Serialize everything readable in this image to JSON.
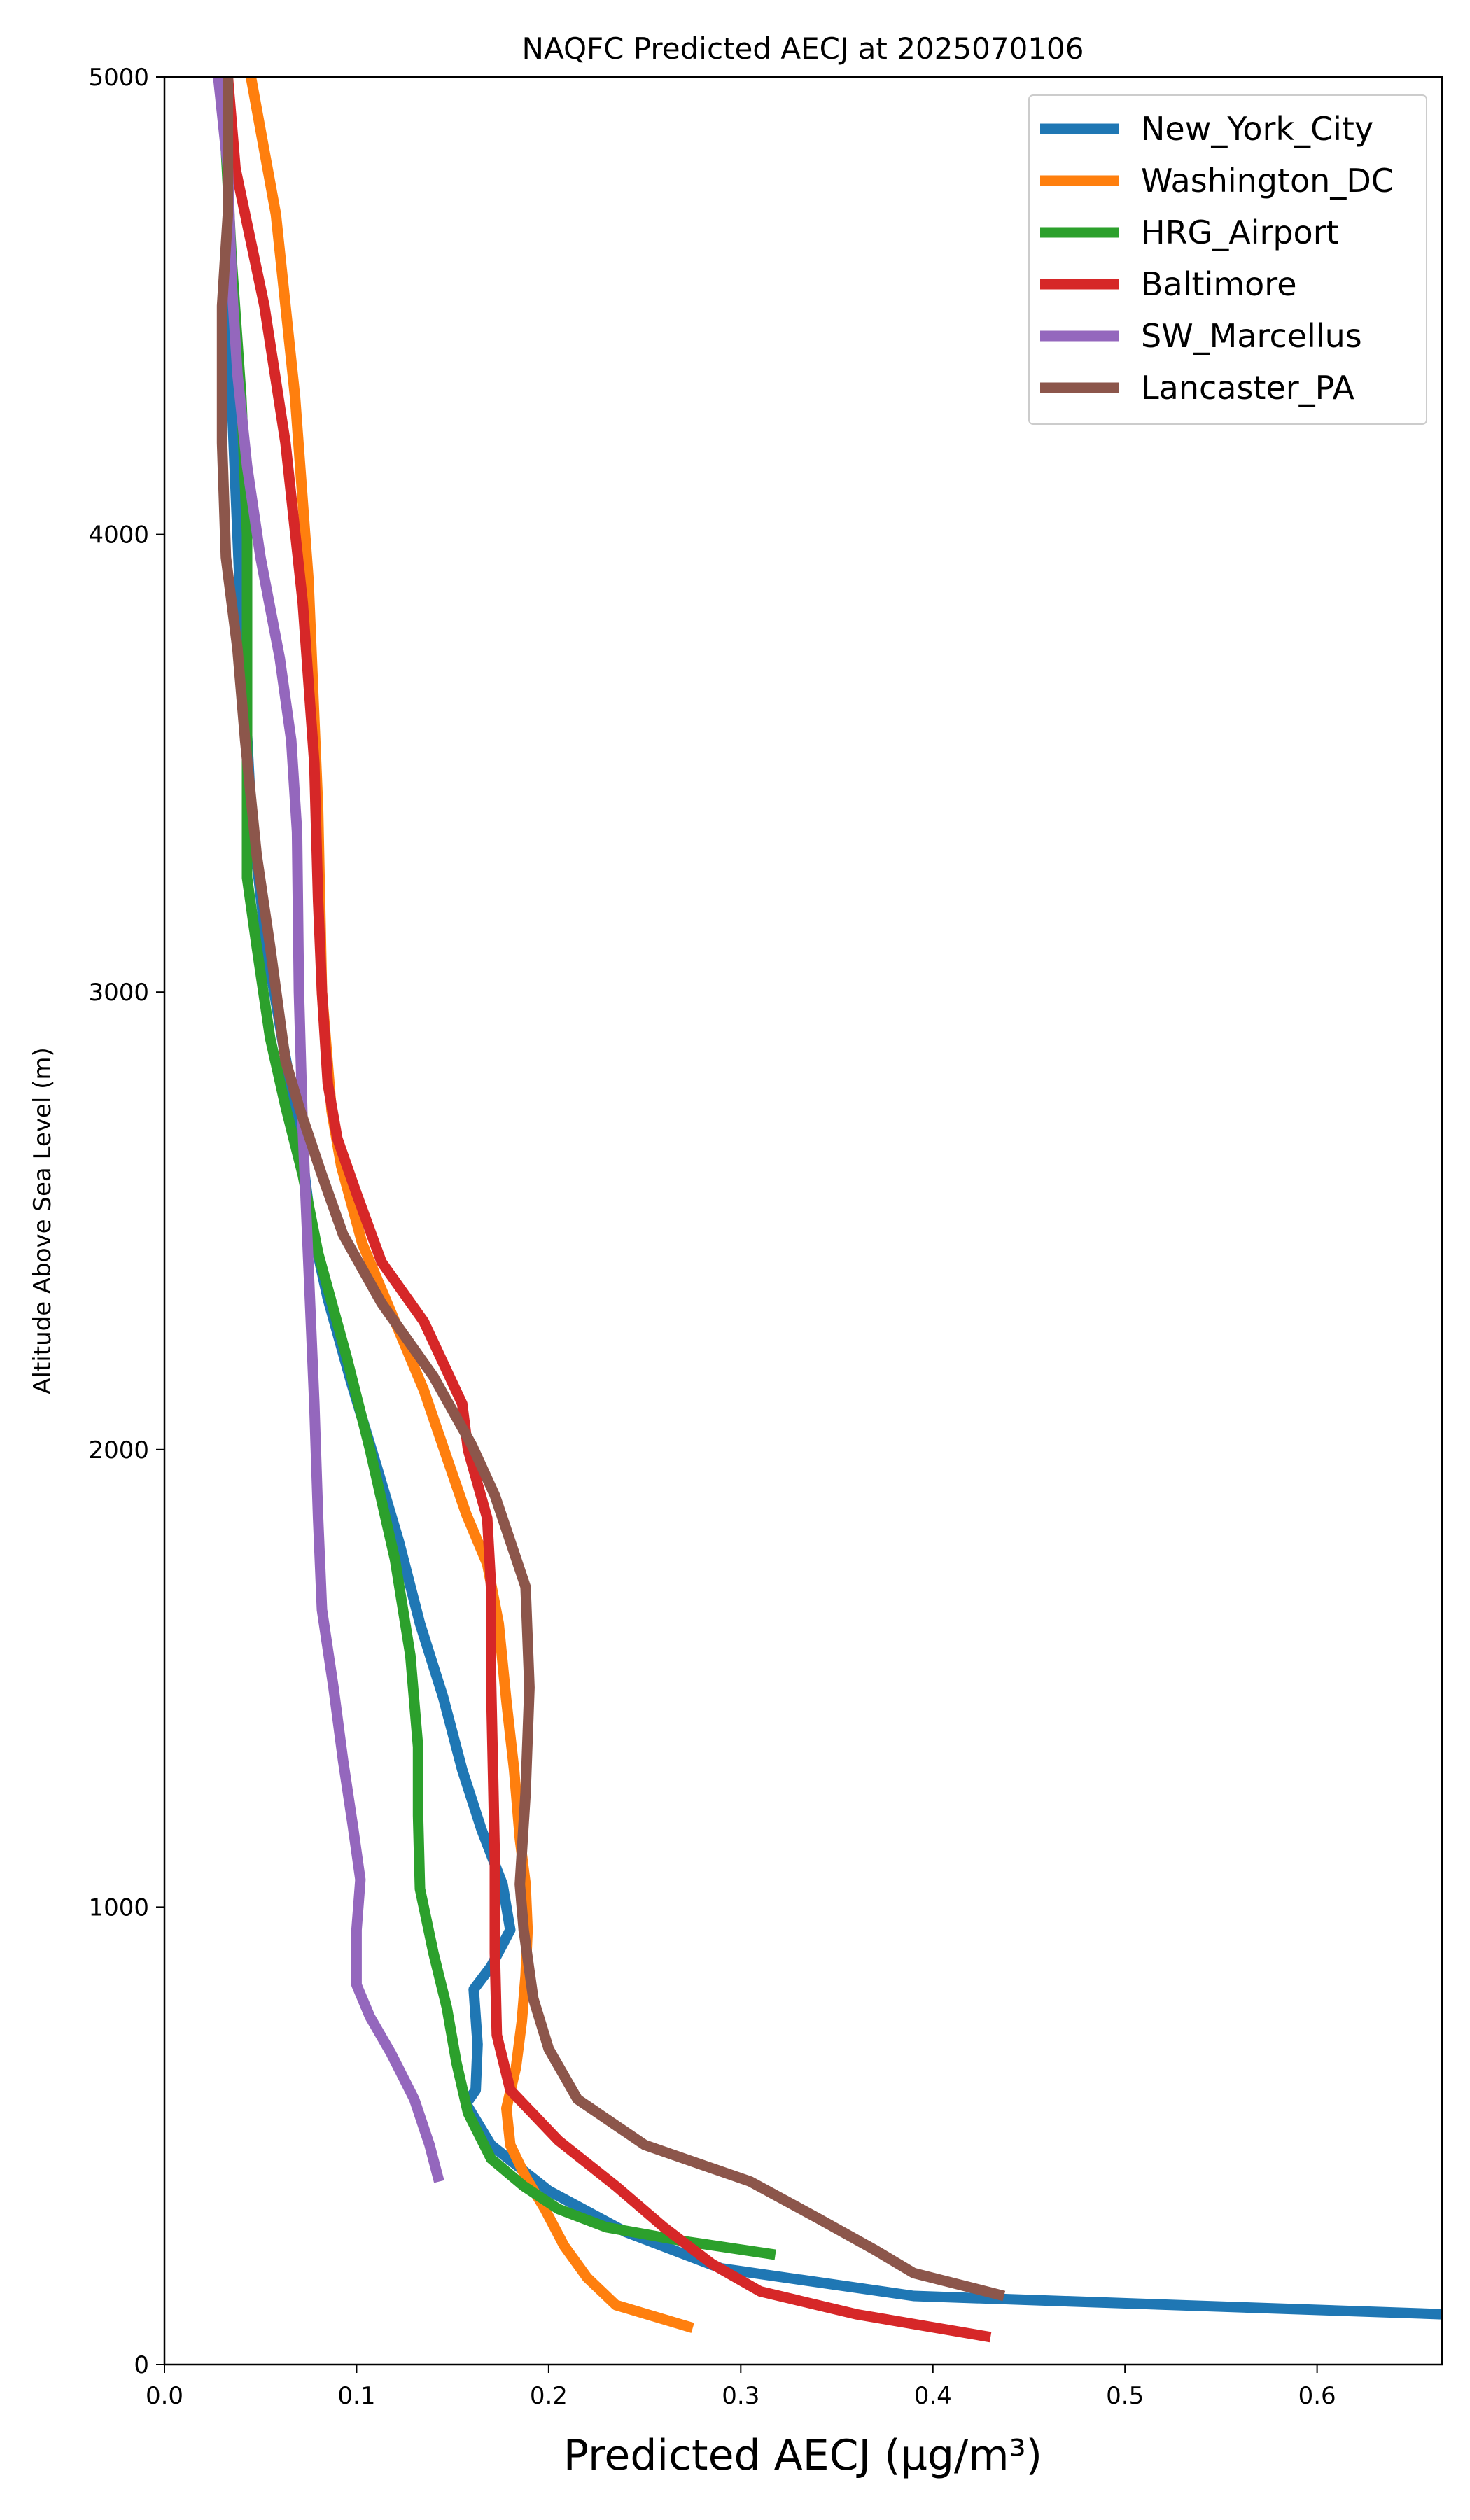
{
  "chart_data": {
    "type": "line",
    "title": "NAQFC Predicted AECJ at 2025070106",
    "xlabel": "Predicted AECJ (μg/m³)",
    "ylabel": "Altitude Above Sea Level (m)",
    "xlim": [
      0,
      0.665
    ],
    "ylim": [
      0,
      5000
    ],
    "xticks": [
      0.0,
      0.1,
      0.2,
      0.3,
      0.4,
      0.5,
      0.6
    ],
    "xtick_labels": [
      "0.0",
      "0.1",
      "0.2",
      "0.3",
      "0.4",
      "0.5",
      "0.6"
    ],
    "yticks": [
      0,
      1000,
      2000,
      3000,
      4000,
      5000
    ],
    "ytick_labels": [
      "0",
      "1000",
      "2000",
      "3000",
      "4000",
      "5000"
    ],
    "grid": false,
    "legend_position": "top-right",
    "series": [
      {
        "name": "New_York_City",
        "color": "#1f77b4",
        "points": [
          [
            0.665,
            110
          ],
          [
            0.39,
            150
          ],
          [
            0.29,
            210
          ],
          [
            0.24,
            290
          ],
          [
            0.2,
            380
          ],
          [
            0.17,
            480
          ],
          [
            0.157,
            570
          ],
          [
            0.162,
            600
          ],
          [
            0.163,
            700
          ],
          [
            0.161,
            820
          ],
          [
            0.17,
            870
          ],
          [
            0.18,
            950
          ],
          [
            0.176,
            1050
          ],
          [
            0.165,
            1170
          ],
          [
            0.155,
            1300
          ],
          [
            0.145,
            1460
          ],
          [
            0.133,
            1620
          ],
          [
            0.122,
            1800
          ],
          [
            0.11,
            1970
          ],
          [
            0.097,
            2150
          ],
          [
            0.085,
            2330
          ],
          [
            0.076,
            2500
          ],
          [
            0.07,
            2700
          ],
          [
            0.062,
            2880
          ],
          [
            0.053,
            3100
          ],
          [
            0.045,
            3400
          ],
          [
            0.04,
            3800
          ],
          [
            0.035,
            4300
          ],
          [
            0.033,
            4800
          ],
          [
            0.032,
            5000
          ]
        ]
      },
      {
        "name": "Washington_DC",
        "color": "#ff7f0e",
        "points": [
          [
            0.275,
            80
          ],
          [
            0.235,
            130
          ],
          [
            0.22,
            190
          ],
          [
            0.208,
            260
          ],
          [
            0.198,
            340
          ],
          [
            0.188,
            410
          ],
          [
            0.18,
            480
          ],
          [
            0.178,
            560
          ],
          [
            0.183,
            650
          ],
          [
            0.186,
            750
          ],
          [
            0.188,
            850
          ],
          [
            0.189,
            950
          ],
          [
            0.188,
            1050
          ],
          [
            0.185,
            1150
          ],
          [
            0.182,
            1300
          ],
          [
            0.178,
            1450
          ],
          [
            0.174,
            1620
          ],
          [
            0.168,
            1750
          ],
          [
            0.157,
            1860
          ],
          [
            0.148,
            1970
          ],
          [
            0.135,
            2130
          ],
          [
            0.12,
            2280
          ],
          [
            0.103,
            2450
          ],
          [
            0.092,
            2620
          ],
          [
            0.087,
            2740
          ],
          [
            0.082,
            3000
          ],
          [
            0.08,
            3400
          ],
          [
            0.075,
            3900
          ],
          [
            0.068,
            4300
          ],
          [
            0.058,
            4700
          ],
          [
            0.045,
            5000
          ]
        ]
      },
      {
        "name": "HRG_Airport",
        "color": "#2ca02c",
        "points": [
          [
            0.318,
            240
          ],
          [
            0.27,
            270
          ],
          [
            0.23,
            300
          ],
          [
            0.205,
            340
          ],
          [
            0.187,
            390
          ],
          [
            0.17,
            450
          ],
          [
            0.158,
            550
          ],
          [
            0.152,
            660
          ],
          [
            0.147,
            780
          ],
          [
            0.14,
            900
          ],
          [
            0.133,
            1040
          ],
          [
            0.132,
            1200
          ],
          [
            0.132,
            1350
          ],
          [
            0.128,
            1550
          ],
          [
            0.12,
            1760
          ],
          [
            0.107,
            2000
          ],
          [
            0.095,
            2200
          ],
          [
            0.08,
            2430
          ],
          [
            0.072,
            2600
          ],
          [
            0.063,
            2750
          ],
          [
            0.055,
            2900
          ],
          [
            0.048,
            3100
          ],
          [
            0.043,
            3250
          ],
          [
            0.043,
            3500
          ],
          [
            0.043,
            4000
          ],
          [
            0.04,
            4300
          ],
          [
            0.035,
            4600
          ],
          [
            0.03,
            5000
          ]
        ]
      },
      {
        "name": "Baltimore",
        "color": "#d62728",
        "points": [
          [
            0.43,
            60
          ],
          [
            0.36,
            110
          ],
          [
            0.31,
            160
          ],
          [
            0.285,
            220
          ],
          [
            0.26,
            300
          ],
          [
            0.235,
            390
          ],
          [
            0.205,
            490
          ],
          [
            0.18,
            600
          ],
          [
            0.173,
            720
          ],
          [
            0.172,
            900
          ],
          [
            0.172,
            1100
          ],
          [
            0.171,
            1300
          ],
          [
            0.17,
            1500
          ],
          [
            0.17,
            1700
          ],
          [
            0.168,
            1850
          ],
          [
            0.158,
            2000
          ],
          [
            0.155,
            2100
          ],
          [
            0.135,
            2280
          ],
          [
            0.113,
            2410
          ],
          [
            0.1,
            2560
          ],
          [
            0.09,
            2680
          ],
          [
            0.085,
            2800
          ],
          [
            0.082,
            3000
          ],
          [
            0.08,
            3200
          ],
          [
            0.078,
            3500
          ],
          [
            0.072,
            3850
          ],
          [
            0.063,
            4200
          ],
          [
            0.052,
            4500
          ],
          [
            0.037,
            4800
          ],
          [
            0.033,
            5000
          ]
        ]
      },
      {
        "name": "SW_Marcellus",
        "color": "#9467bd",
        "points": [
          [
            0.143,
            400
          ],
          [
            0.138,
            480
          ],
          [
            0.13,
            580
          ],
          [
            0.118,
            680
          ],
          [
            0.107,
            760
          ],
          [
            0.1,
            830
          ],
          [
            0.1,
            950
          ],
          [
            0.102,
            1060
          ],
          [
            0.098,
            1180
          ],
          [
            0.093,
            1320
          ],
          [
            0.088,
            1480
          ],
          [
            0.082,
            1650
          ],
          [
            0.08,
            1850
          ],
          [
            0.078,
            2100
          ],
          [
            0.075,
            2400
          ],
          [
            0.072,
            2700
          ],
          [
            0.07,
            3000
          ],
          [
            0.069,
            3350
          ],
          [
            0.066,
            3550
          ],
          [
            0.06,
            3730
          ],
          [
            0.05,
            3950
          ],
          [
            0.043,
            4150
          ],
          [
            0.038,
            4350
          ],
          [
            0.035,
            4550
          ],
          [
            0.033,
            4800
          ],
          [
            0.028,
            5000
          ]
        ]
      },
      {
        "name": "Lancaster_PA",
        "color": "#8c564b",
        "points": [
          [
            0.437,
            150
          ],
          [
            0.39,
            200
          ],
          [
            0.37,
            250
          ],
          [
            0.34,
            320
          ],
          [
            0.305,
            400
          ],
          [
            0.25,
            480
          ],
          [
            0.215,
            580
          ],
          [
            0.2,
            690
          ],
          [
            0.192,
            800
          ],
          [
            0.187,
            950
          ],
          [
            0.185,
            1050
          ],
          [
            0.188,
            1250
          ],
          [
            0.19,
            1480
          ],
          [
            0.188,
            1700
          ],
          [
            0.18,
            1800
          ],
          [
            0.172,
            1900
          ],
          [
            0.16,
            2010
          ],
          [
            0.14,
            2160
          ],
          [
            0.113,
            2320
          ],
          [
            0.093,
            2470
          ],
          [
            0.082,
            2600
          ],
          [
            0.07,
            2750
          ],
          [
            0.063,
            2850
          ],
          [
            0.055,
            3100
          ],
          [
            0.048,
            3300
          ],
          [
            0.042,
            3550
          ],
          [
            0.038,
            3750
          ],
          [
            0.032,
            3950
          ],
          [
            0.03,
            4200
          ],
          [
            0.03,
            4500
          ],
          [
            0.033,
            4700
          ],
          [
            0.033,
            5000
          ]
        ]
      }
    ]
  }
}
